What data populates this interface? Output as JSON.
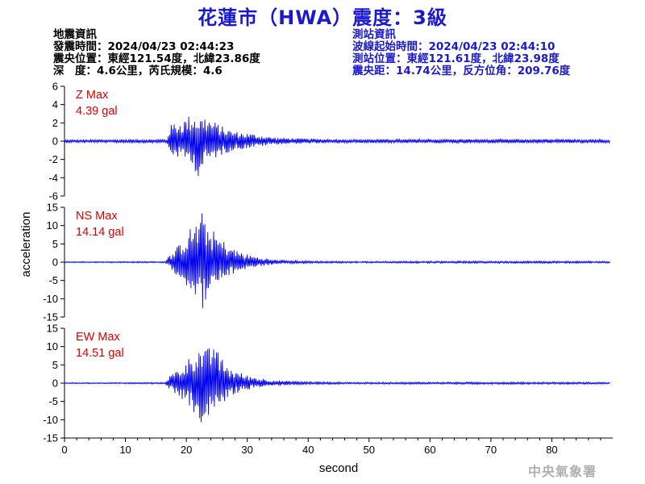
{
  "header": {
    "title": "花蓮市（HWA）震度：3級",
    "quake_info": [
      "地震資訊",
      "發震時間：2024/04/23 02:44:23",
      "震央位置：東經121.54度，北緯23.86度",
      "深　度：4.6公里，芮氏規模：4.6"
    ],
    "station_info": [
      "測站資訊",
      "波線起始時間：2024/04/23 02:44:10",
      "測站位置：東經121.61度，北緯23.98度",
      "震央距：14.74公里，反方位角：209.76度"
    ]
  },
  "watermark": "中央氣象署",
  "colors": {
    "title": "#1a1acc",
    "trace": "#0000ee",
    "max_label": "#dd0000",
    "station_text": "#1a1acc"
  },
  "chart_data": {
    "type": "line",
    "xlabel": "second",
    "ylabel": "acceleration",
    "xlim": [
      0,
      90
    ],
    "x_ticks": [
      0,
      10,
      20,
      30,
      40,
      50,
      60,
      70,
      80
    ],
    "panels": [
      {
        "component": "Z",
        "max_label": "Z Max",
        "max_value": "4.39 gal",
        "ylim": [
          -6,
          6
        ],
        "y_ticks": [
          6,
          4,
          2,
          0,
          -2,
          -4,
          -6
        ],
        "envelope": {
          "x": [
            0,
            16.8,
            17.2,
            18,
            19,
            20,
            21,
            22,
            23,
            24,
            25,
            26,
            27,
            28,
            30,
            32,
            34,
            37,
            40,
            45,
            50,
            60,
            70,
            80,
            90
          ],
          "pos": [
            0.15,
            0.2,
            1.6,
            2.1,
            2.2,
            2.6,
            3.1,
            2.6,
            2.8,
            2.4,
            2.0,
            1.6,
            1.3,
            1.1,
            0.9,
            0.7,
            0.45,
            0.35,
            0.28,
            0.22,
            0.2,
            0.22,
            0.22,
            0.22,
            0.2
          ],
          "neg": [
            0.15,
            0.2,
            1.3,
            1.7,
            1.9,
            2.1,
            2.4,
            4.39,
            2.6,
            2.1,
            1.8,
            1.5,
            1.2,
            1.0,
            0.8,
            0.6,
            0.4,
            0.3,
            0.25,
            0.22,
            0.2,
            0.22,
            0.22,
            0.22,
            0.2
          ]
        }
      },
      {
        "component": "NS",
        "max_label": "NS Max",
        "max_value": "14.14 gal",
        "ylim": [
          -15,
          15
        ],
        "y_ticks": [
          15,
          10,
          5,
          0,
          -5,
          -10,
          -15
        ],
        "envelope": {
          "x": [
            0,
            16.5,
            17,
            18,
            19,
            20,
            21,
            22,
            22.7,
            23,
            24,
            25,
            26,
            27,
            28,
            30,
            32,
            34,
            37,
            40,
            45,
            50,
            60,
            70,
            80,
            90
          ],
          "pos": [
            0.15,
            0.2,
            1.5,
            3.0,
            5.5,
            7.5,
            10.5,
            11.5,
            14.14,
            12.0,
            9.5,
            7.5,
            6.0,
            4.8,
            3.5,
            2.2,
            1.4,
            0.8,
            0.5,
            0.35,
            0.25,
            0.22,
            0.3,
            0.3,
            0.3,
            0.25
          ],
          "neg": [
            0.15,
            0.2,
            1.3,
            2.8,
            4.5,
            6.5,
            8.0,
            10.0,
            13.0,
            11.0,
            9.0,
            6.5,
            5.0,
            4.0,
            3.0,
            1.8,
            1.2,
            0.7,
            0.45,
            0.3,
            0.25,
            0.22,
            0.3,
            0.3,
            0.3,
            0.25
          ]
        }
      },
      {
        "component": "EW",
        "max_label": "EW Max",
        "max_value": "14.51 gal",
        "ylim": [
          -15,
          15
        ],
        "y_ticks": [
          15,
          10,
          5,
          0,
          -5,
          -10,
          -15
        ],
        "envelope": {
          "x": [
            0,
            16.5,
            17,
            18,
            19,
            20,
            21,
            22,
            23,
            24,
            24.6,
            25,
            26,
            27,
            28,
            30,
            32,
            34,
            37,
            40,
            45,
            50,
            60,
            70,
            80,
            90
          ],
          "pos": [
            0.15,
            0.2,
            1.8,
            3.0,
            4.5,
            6.0,
            8.5,
            10.0,
            9.0,
            10.0,
            14.51,
            9.0,
            6.5,
            4.5,
            3.5,
            2.2,
            1.5,
            0.9,
            0.6,
            0.4,
            0.3,
            0.25,
            0.3,
            0.3,
            0.3,
            0.25
          ],
          "neg": [
            0.15,
            0.2,
            1.5,
            2.6,
            4.0,
            5.5,
            8.0,
            10.5,
            12.0,
            8.5,
            8.0,
            7.0,
            5.5,
            4.0,
            3.0,
            1.8,
            1.2,
            0.8,
            0.5,
            0.35,
            0.28,
            0.25,
            0.3,
            0.3,
            0.3,
            0.25
          ]
        }
      }
    ]
  }
}
